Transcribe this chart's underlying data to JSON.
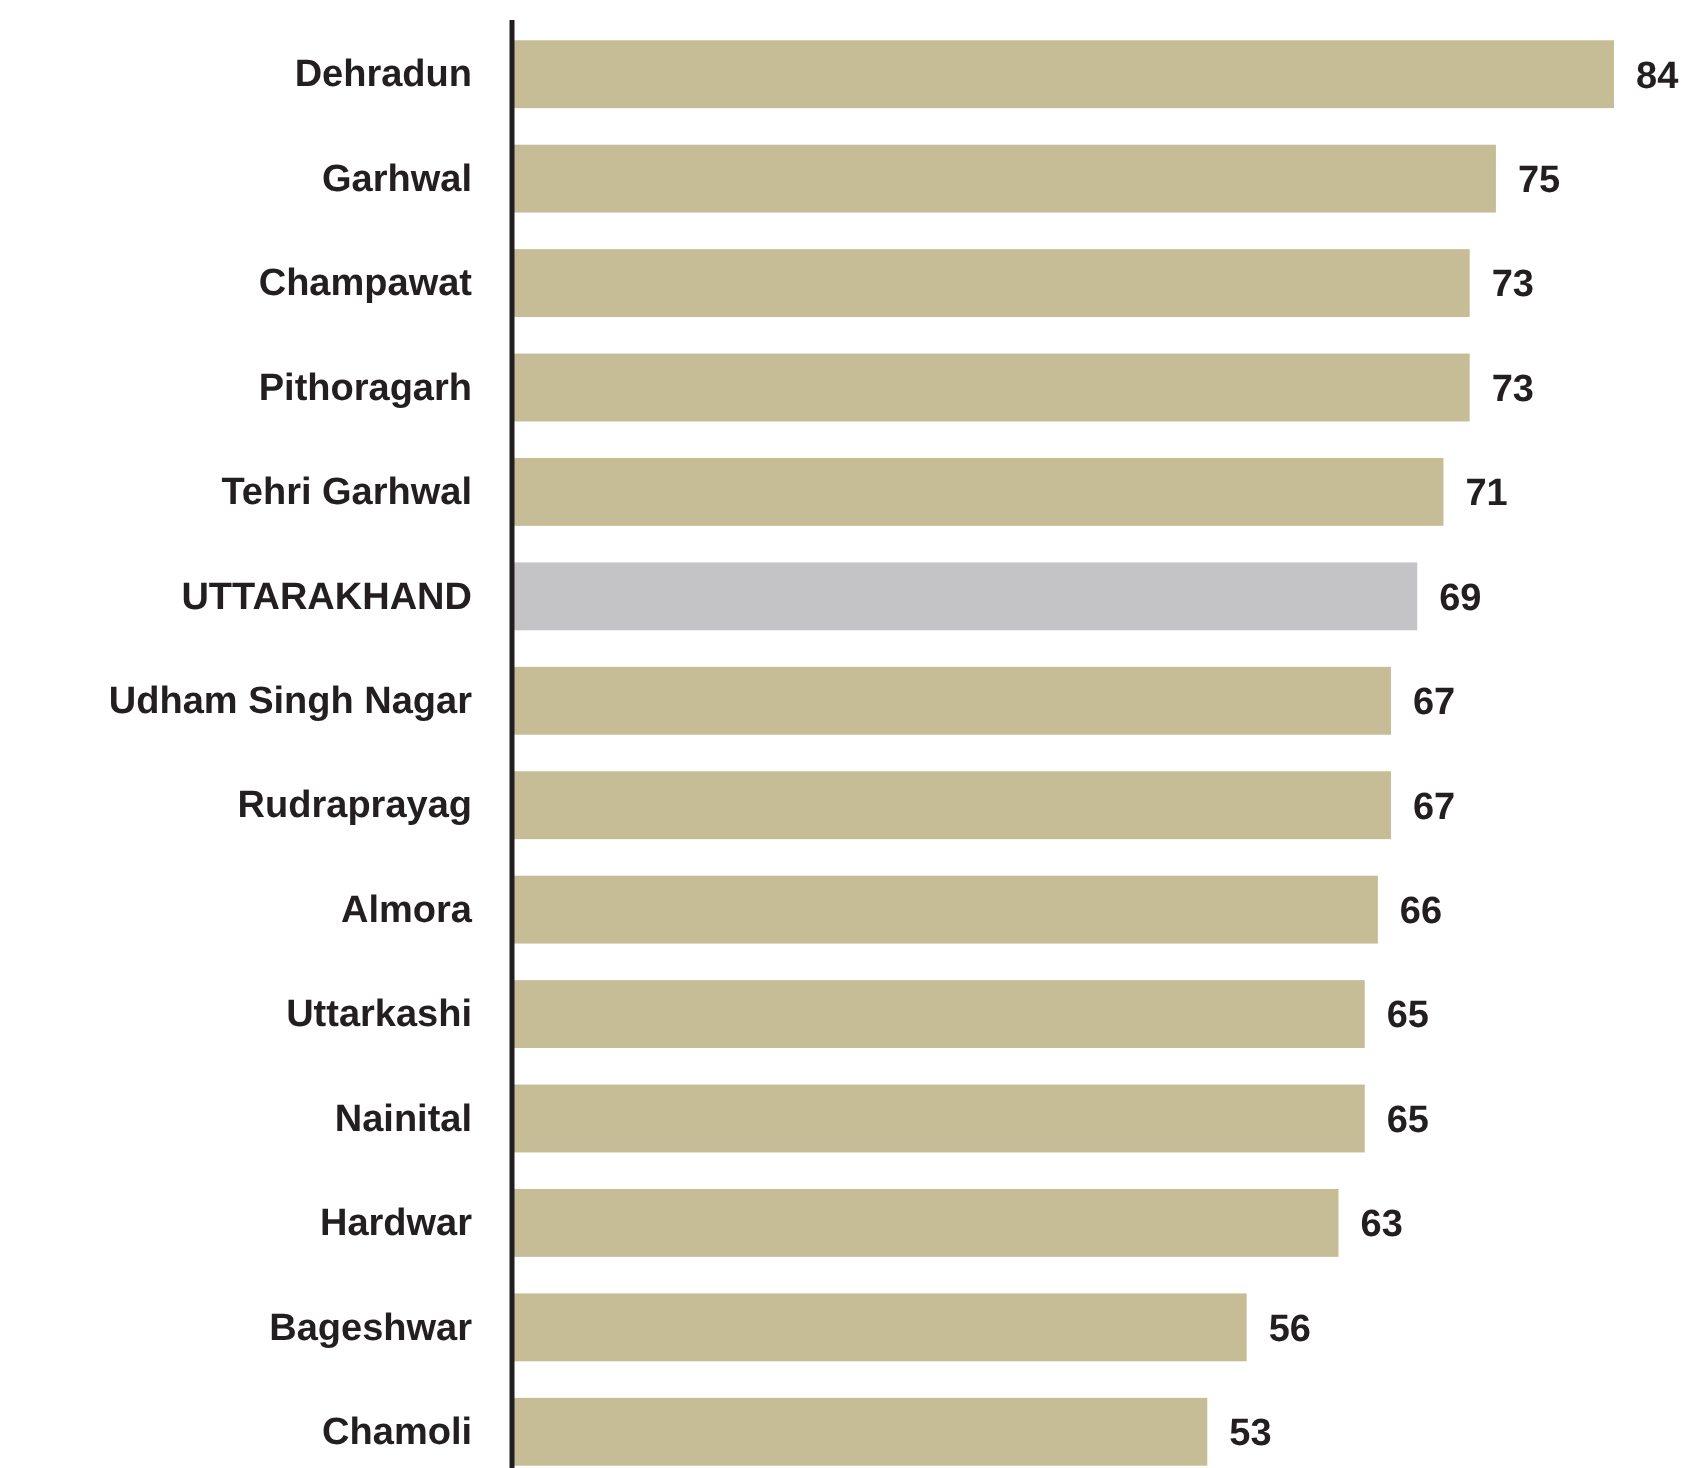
{
  "chart_data": {
    "type": "bar",
    "orientation": "horizontal",
    "data_labels": true,
    "categories": [
      "Dehradun",
      "Garhwal",
      "Champawat",
      "Pithoragarh",
      "Tehri Garhwal",
      "UTTARAKHAND",
      "Udham Singh Nagar",
      "Rudraprayag",
      "Almora",
      "Uttarkashi",
      "Nainital",
      "Hardwar",
      "Bageshwar",
      "Chamoli"
    ],
    "values": [
      84,
      75,
      73,
      73,
      71,
      69,
      67,
      67,
      66,
      65,
      65,
      63,
      56,
      53
    ],
    "colors": [
      "#c6bd96",
      "#c6bd96",
      "#c6bd96",
      "#c6bd96",
      "#c6bd96",
      "#c4c4c6",
      "#c6bd96",
      "#c6bd96",
      "#c6bd96",
      "#c6bd96",
      "#c6bd96",
      "#c6bd96",
      "#c6bd96",
      "#c6bd96"
    ]
  }
}
